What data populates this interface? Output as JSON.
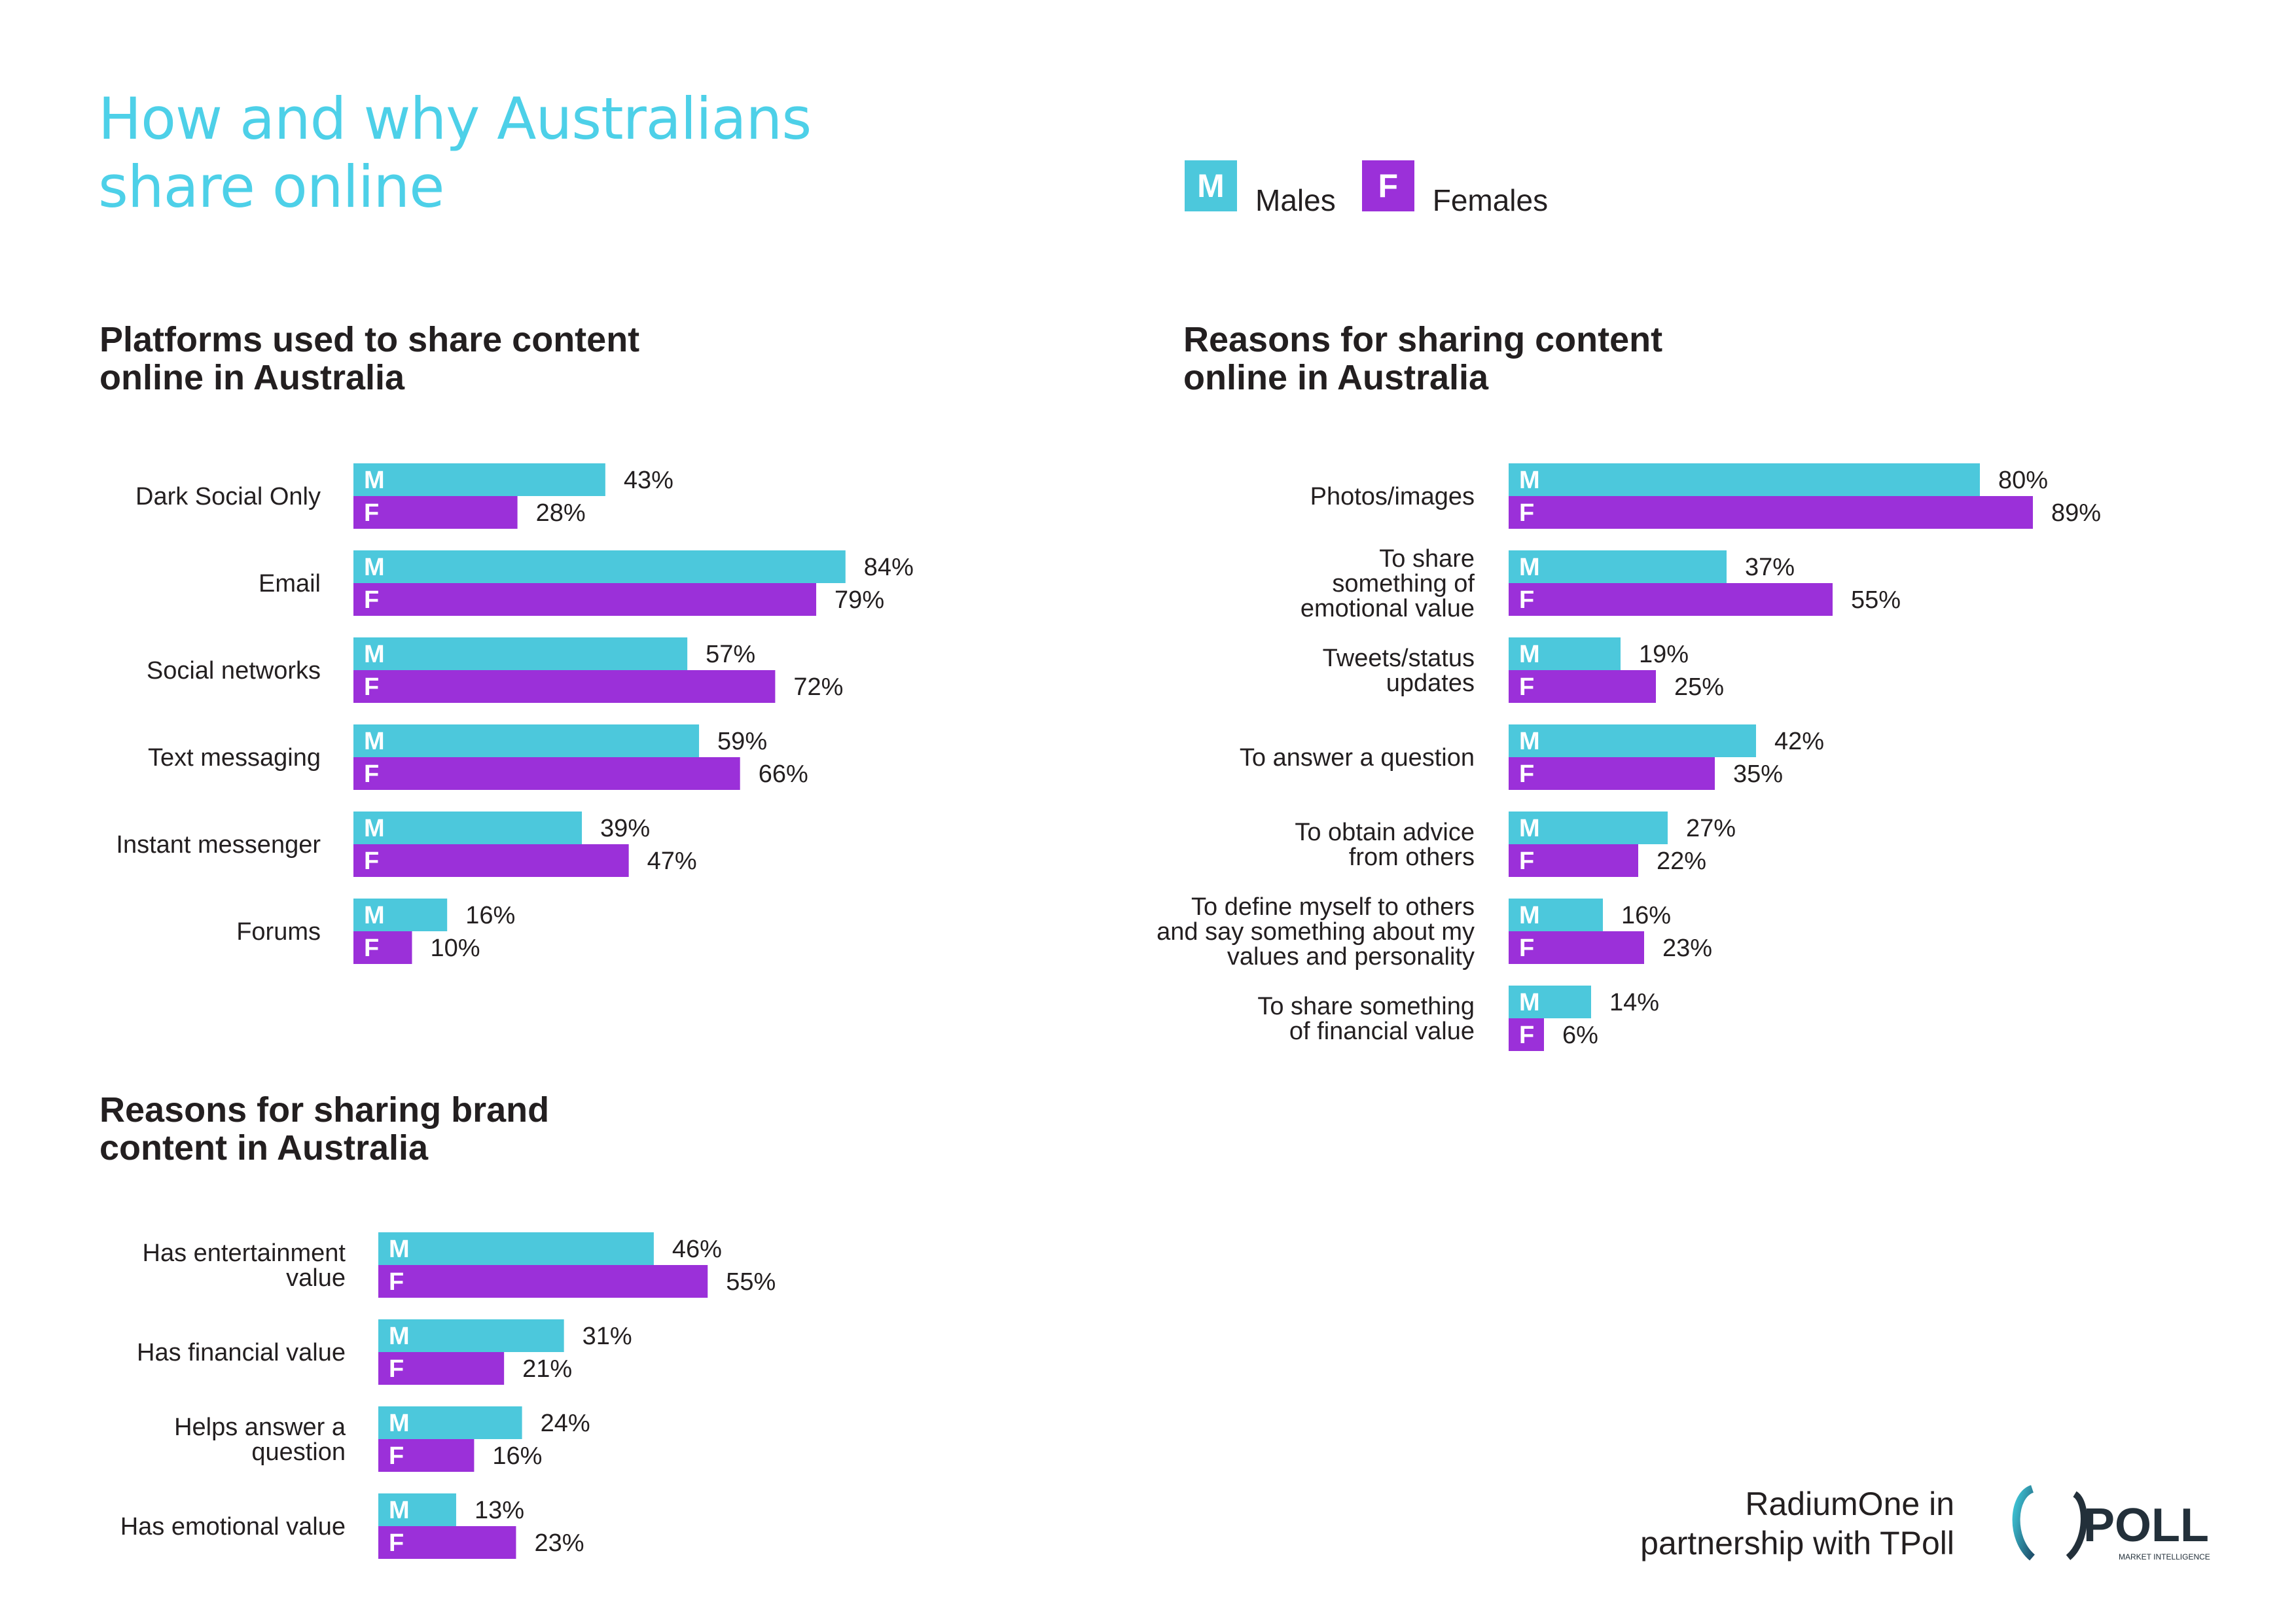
{
  "title": "How and why Australians\nshare online",
  "legend": {
    "males": {
      "letter": "M",
      "label": "Males"
    },
    "females": {
      "letter": "F",
      "label": "Females"
    }
  },
  "colors": {
    "males": "#4cc8dc",
    "females": "#9b30d9",
    "title": "#4dd0e8",
    "text": "#231f20"
  },
  "footer": {
    "text": "RadiumOne in\npartnership with TPoll",
    "logo_text": "POLL",
    "logo_subtext": "MARKET INTELLIGENCE"
  },
  "chart_data": [
    {
      "type": "bar",
      "orientation": "horizontal",
      "title": "Platforms used to share content\nonline in Australia",
      "categories": [
        "Dark Social Only",
        "Email",
        "Social networks",
        "Text messaging",
        "Instant messenger",
        "Forums"
      ],
      "series": [
        {
          "name": "Males",
          "letter": "M",
          "values": [
            43,
            84,
            57,
            59,
            39,
            16
          ]
        },
        {
          "name": "Females",
          "letter": "F",
          "values": [
            28,
            79,
            72,
            66,
            47,
            10
          ]
        }
      ],
      "unit": "%"
    },
    {
      "type": "bar",
      "orientation": "horizontal",
      "title": "Reasons for sharing content\nonline in Australia",
      "categories": [
        "Photos/images",
        "To share\nsomething of\nemotional value",
        "Tweets/status\nupdates",
        "To answer a question",
        "To obtain advice\nfrom others",
        "To define myself to others\nand say something about my\nvalues and personality",
        "To share something\nof financial value"
      ],
      "series": [
        {
          "name": "Males",
          "letter": "M",
          "values": [
            80,
            37,
            19,
            42,
            27,
            16,
            14
          ]
        },
        {
          "name": "Females",
          "letter": "F",
          "values": [
            89,
            55,
            25,
            35,
            22,
            23,
            6
          ]
        }
      ],
      "unit": "%"
    },
    {
      "type": "bar",
      "orientation": "horizontal",
      "title": "Reasons for sharing brand\ncontent in Australia",
      "categories": [
        "Has entertainment\nvalue",
        "Has financial value",
        "Helps answer a\nquestion",
        "Has emotional value"
      ],
      "series": [
        {
          "name": "Males",
          "letter": "M",
          "values": [
            46,
            31,
            24,
            13
          ]
        },
        {
          "name": "Females",
          "letter": "F",
          "values": [
            55,
            21,
            16,
            23
          ]
        }
      ],
      "unit": "%"
    }
  ]
}
